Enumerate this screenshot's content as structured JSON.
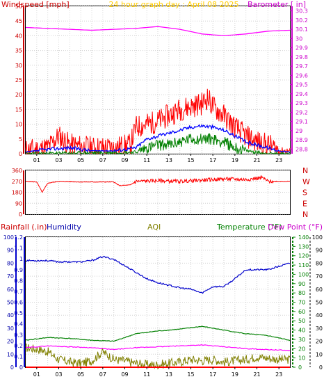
{
  "chart_data": [
    {
      "type": "line",
      "title": "24 hour graph day : April 08 2025",
      "left_label": "Windspeed [mph]",
      "right_label": "Barometer [ in]",
      "x_ticks": [
        "01",
        "03",
        "05",
        "07",
        "09",
        "11",
        "13",
        "15",
        "17",
        "19",
        "21",
        "23"
      ],
      "y_left_ticks": [
        "0",
        "5",
        "10",
        "15",
        "20",
        "25",
        "30",
        "35",
        "40",
        "45",
        "50"
      ],
      "y_left_lim": [
        0,
        50
      ],
      "y_right_ticks": [
        "28.8",
        "28.9",
        "29",
        "29.1",
        "29.2",
        "29.3",
        "29.4",
        "29.5",
        "29.6",
        "29.7",
        "29.8",
        "29.9",
        "30",
        "30.1",
        "30.2",
        "30.3"
      ],
      "y_right_lim": [
        28.75,
        30.35
      ],
      "grid": true,
      "colors": {
        "windspeed": "#ff0000",
        "average": "#0000ff",
        "min": "#008000",
        "barometer": "#ff00ff"
      },
      "series": [
        {
          "key": "barometer",
          "x": [
            0,
            2,
            4,
            6,
            8,
            10,
            12,
            14,
            16,
            18,
            20,
            22,
            24
          ],
          "y": [
            30.12,
            30.11,
            30.1,
            30.09,
            30.1,
            30.11,
            30.13,
            30.1,
            30.05,
            30.03,
            30.05,
            30.08,
            30.09
          ]
        },
        {
          "key": "windspeed",
          "x": [
            0,
            2,
            3,
            4,
            6,
            8,
            9.5,
            10,
            11,
            12,
            13,
            14,
            15,
            16,
            16.5,
            17,
            18,
            19,
            20,
            21,
            22,
            23,
            24
          ],
          "y": [
            1,
            2,
            6,
            3,
            2,
            2,
            3,
            9,
            10,
            11,
            13,
            15,
            16,
            17,
            19,
            16,
            13,
            9,
            6,
            4,
            3,
            1,
            1
          ]
        },
        {
          "key": "average",
          "x": [
            0,
            2,
            4,
            6,
            8,
            10,
            11,
            12,
            13,
            14,
            15,
            16,
            17,
            18,
            19,
            20,
            21,
            22,
            23,
            24
          ],
          "y": [
            0.5,
            1.5,
            2,
            1,
            1,
            2,
            5,
            6,
            7,
            8,
            9,
            9.5,
            9,
            8,
            6,
            4,
            3,
            2,
            1,
            0.5
          ]
        },
        {
          "key": "min",
          "x": [
            0,
            10,
            11,
            12,
            13,
            14,
            15,
            16,
            17,
            18,
            19,
            20,
            21,
            22,
            24
          ],
          "y": [
            0,
            0.5,
            2,
            3,
            3,
            4,
            5,
            5,
            5,
            4,
            2,
            1,
            0.5,
            0,
            0
          ]
        }
      ]
    },
    {
      "type": "line",
      "left_label": "",
      "y_left_ticks": [
        "0",
        "90",
        "180",
        "270",
        "360"
      ],
      "y_left_lim": [
        0,
        360
      ],
      "right_ticks": [
        "N",
        "W",
        "S",
        "E",
        "N"
      ],
      "grid": true,
      "colors": {
        "direction": "#ff0000"
      },
      "series": [
        {
          "key": "direction",
          "x": [
            0,
            1,
            1.5,
            2,
            3,
            5,
            8,
            8.5,
            9.5,
            10,
            12,
            14,
            16,
            18,
            20,
            21.5,
            22,
            24
          ],
          "y": [
            270,
            265,
            180,
            255,
            270,
            265,
            265,
            235,
            240,
            270,
            275,
            270,
            280,
            290,
            285,
            300,
            270,
            270
          ]
        }
      ]
    },
    {
      "type": "line",
      "labels": {
        "rainfall": "Rainfall (.in)",
        "humidity": "Humidity",
        "aqi": "AQI",
        "temperature": "Temperature (°F)",
        "dewpoint": "Dew Point (°F)"
      },
      "x_ticks": [
        "01",
        "03",
        "05",
        "07",
        "09",
        "11",
        "13",
        "15",
        "17",
        "19",
        "21",
        "23"
      ],
      "y_humidity_ticks": [
        "0",
        "10",
        "20",
        "30",
        "40",
        "50",
        "60",
        "70",
        "80",
        "90",
        "100"
      ],
      "y_humidity_lim": [
        0,
        100
      ],
      "y_rain_ticks": [
        "0",
        "0.1",
        "0.2",
        "0.3",
        "0.4",
        "0.5",
        "0.6",
        "0.7",
        "0.8",
        "0.9",
        "1",
        "1.1",
        "1.2"
      ],
      "y_rain_lim": [
        0,
        1.2
      ],
      "y_temp_ticks": [
        "0",
        "10",
        "20",
        "30",
        "40",
        "50",
        "60",
        "70",
        "80",
        "90",
        "100",
        "110",
        "120",
        "130",
        "140"
      ],
      "y_temp_lim": [
        0,
        140
      ],
      "y_aqi_ticks": [
        "0",
        "10",
        "20",
        "30",
        "40",
        "50",
        "60",
        "70",
        "80",
        "90",
        "100"
      ],
      "y_aqi_lim": [
        0,
        100
      ],
      "grid": true,
      "colors": {
        "rainfall": "#ff0000",
        "humidity": "#0000cc",
        "aqi": "#808000",
        "temperature": "#008000",
        "dewpoint": "#ff00ff"
      },
      "series": [
        {
          "key": "rainfall",
          "axis": "rain",
          "x": [
            0,
            24
          ],
          "y": [
            0,
            0
          ]
        },
        {
          "key": "humidity",
          "axis": "humidity",
          "x": [
            0,
            2,
            3,
            4,
            5,
            6,
            7,
            8,
            9,
            10,
            11,
            12,
            13,
            14,
            15,
            16,
            17,
            18,
            19,
            20,
            22,
            24
          ],
          "y": [
            82,
            82,
            81,
            81,
            81,
            82,
            85,
            83,
            78,
            73,
            68,
            65,
            63,
            61,
            60,
            57,
            62,
            62,
            68,
            75,
            75,
            80
          ]
        },
        {
          "key": "temperature",
          "axis": "temp",
          "x": [
            0,
            2,
            4,
            6,
            8,
            10,
            12,
            14,
            16,
            18,
            20,
            22,
            24
          ],
          "y": [
            29,
            32,
            31,
            29,
            28,
            36,
            39,
            41,
            44,
            40,
            36,
            34,
            29
          ]
        },
        {
          "key": "dewpoint",
          "axis": "temp",
          "x": [
            0,
            2,
            4,
            6,
            8,
            10,
            12,
            14,
            16,
            18,
            20,
            22,
            24
          ],
          "y": [
            21,
            23,
            22,
            21,
            19,
            21,
            22,
            23,
            24,
            22,
            20,
            19,
            18
          ]
        },
        {
          "key": "aqi",
          "axis": "aqi",
          "x": [
            0,
            1,
            2,
            3,
            4,
            5,
            6,
            7,
            8,
            9,
            10,
            11,
            12,
            13,
            14,
            15,
            16,
            17,
            18,
            19,
            20,
            21,
            22,
            23,
            24
          ],
          "y": [
            15,
            14,
            12,
            6,
            4,
            3,
            5,
            12,
            6,
            5,
            3,
            2,
            2,
            3,
            4,
            6,
            5,
            6,
            4,
            5,
            6,
            8,
            7,
            6,
            6
          ]
        }
      ]
    }
  ]
}
